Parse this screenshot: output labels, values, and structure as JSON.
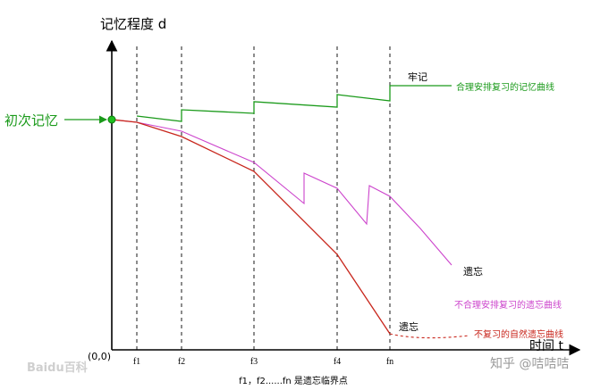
{
  "axes": {
    "y_label": "记忆程度 d",
    "x_label": "时间 t",
    "origin": "(0,0)"
  },
  "start_label": "初次记忆",
  "ticks": [
    "f1",
    "f2",
    "f3",
    "f4",
    "fn"
  ],
  "caption": "f1，f2......fn 是遗忘临界点",
  "curves": {
    "green": {
      "end_label": "牢记",
      "legend": "合理安排复习的记忆曲线",
      "color": "#1a9a1a"
    },
    "magenta": {
      "end_label": "遗忘",
      "legend": "不合理安排复习的遗忘曲线",
      "color": "#cc44cc"
    },
    "red": {
      "end_label": "遗忘",
      "legend": "不复习的自然遗忘曲线",
      "color": "#c8261c"
    }
  },
  "watermark": {
    "left": "Baidu百科",
    "right": "知乎 @咭咭咭"
  }
}
